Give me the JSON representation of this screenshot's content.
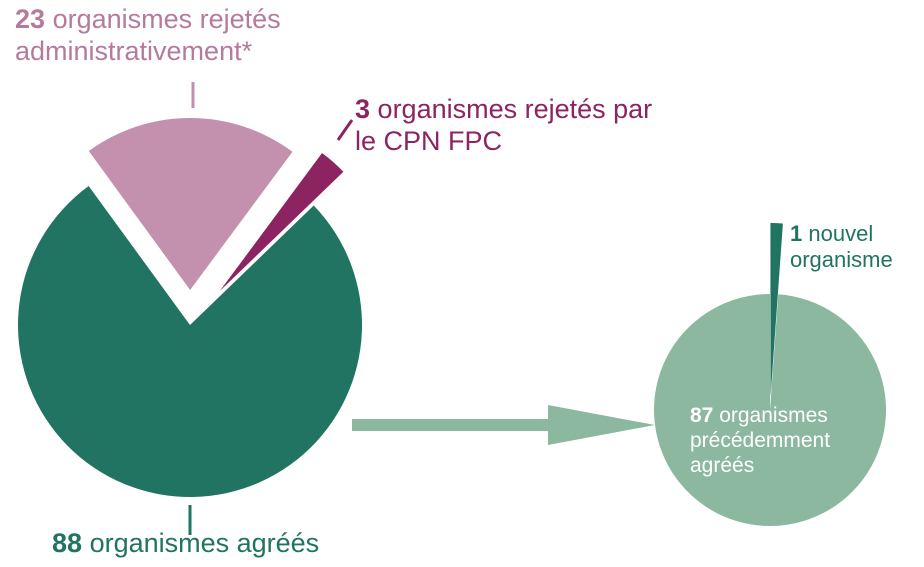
{
  "chart_data": [
    {
      "type": "pie",
      "categories": [
        "organismes agréés",
        "organismes rejetés administrativement*",
        "organismes rejetés par le CPN FPC"
      ],
      "values": [
        88,
        23,
        3
      ],
      "colors": [
        "#217362",
        "#c391ad",
        "#8c2461"
      ]
    },
    {
      "type": "pie",
      "categories": [
        "organismes précédemment agréés",
        "nouvel organisme"
      ],
      "values": [
        87,
        1
      ],
      "colors": [
        "#8bb89f",
        "#217362"
      ]
    }
  ]
}
